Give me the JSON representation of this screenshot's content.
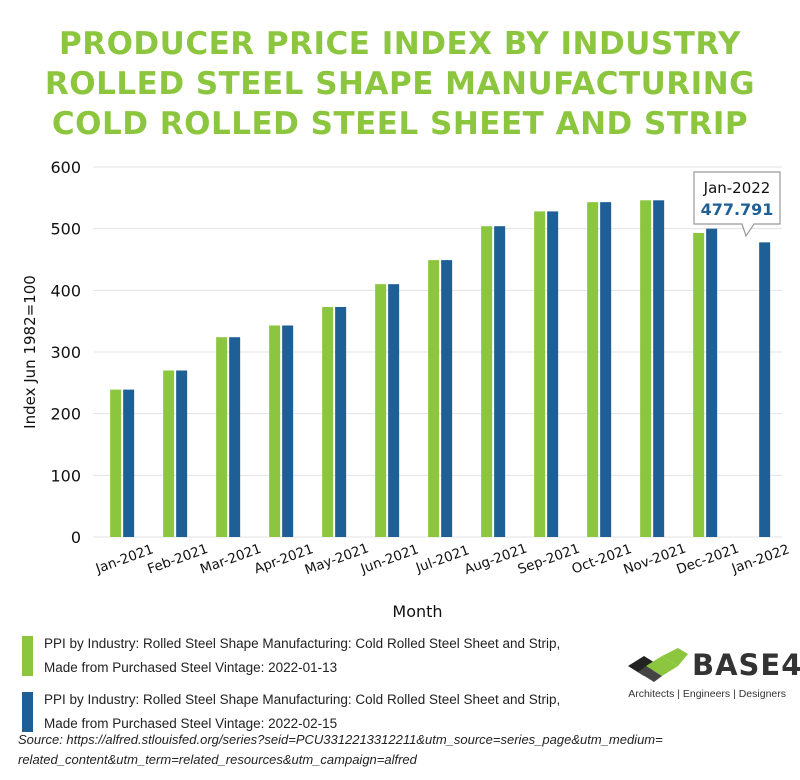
{
  "title_lines": [
    "PRODUCER PRICE INDEX BY INDUSTRY",
    "ROLLED STEEL SHAPE MANUFACTURING",
    "COLD ROLLED STEEL SHEET AND STRIP"
  ],
  "colors": {
    "series1": "#8cc63f",
    "series2": "#1e5f96",
    "title": "#8cc63f"
  },
  "chart_data": {
    "type": "bar",
    "categories": [
      "Jan-2021",
      "Feb-2021",
      "Mar-2021",
      "Apr-2021",
      "May-2021",
      "Jun-2021",
      "Jul-2021",
      "Aug-2021",
      "Sep-2021",
      "Oct-2021",
      "Nov-2021",
      "Dec-2021",
      "Jan-2022"
    ],
    "series": [
      {
        "name": "PPI by Industry: Rolled Steel Shape Manufacturing: Cold Rolled Steel Sheet and Strip, Made from Purchased Steel Vintage: 2022-01-13",
        "values": [
          239,
          270,
          324,
          343,
          373,
          410,
          449,
          504,
          528,
          543,
          546,
          493,
          null
        ]
      },
      {
        "name": "PPI by Industry: Rolled Steel Shape Manufacturing: Cold Rolled Steel Sheet and Strip, Made from Purchased Steel Vintage: 2022-02-15",
        "values": [
          239,
          270,
          324,
          343,
          373,
          410,
          449,
          504,
          528,
          543,
          546,
          500,
          477.791
        ]
      }
    ],
    "ylim": [
      0,
      600
    ],
    "yticks": [
      0,
      100,
      200,
      300,
      400,
      500,
      600
    ],
    "xlabel": "Month",
    "ylabel": "Index Jun 1982=100",
    "grid": true,
    "annotation": {
      "category": "Jan-2022",
      "label": "Jan-2022",
      "value_text": "477.791"
    }
  },
  "legend": [
    {
      "line1": "PPI by Industry: Rolled Steel Shape Manufacturing: Cold Rolled Steel Sheet and Strip,",
      "line2": "Made from Purchased Steel Vintage: 2022-01-13"
    },
    {
      "line1": "PPI by Industry: Rolled Steel Shape Manufacturing: Cold Rolled Steel Sheet and Strip,",
      "line2": "Made from Purchased Steel Vintage: 2022-02-15"
    }
  ],
  "logo": {
    "word": "BASE4",
    "tagline": "Architects | Engineers | Designers",
    "icon": "cube-logo-icon"
  },
  "source_line1": "Source: https://alfred.stlouisfed.org/series?seid=PCU3312213312211&utm_source=series_page&utm_medium=",
  "source_line2": "related_content&utm_term=related_resources&utm_campaign=alfred"
}
